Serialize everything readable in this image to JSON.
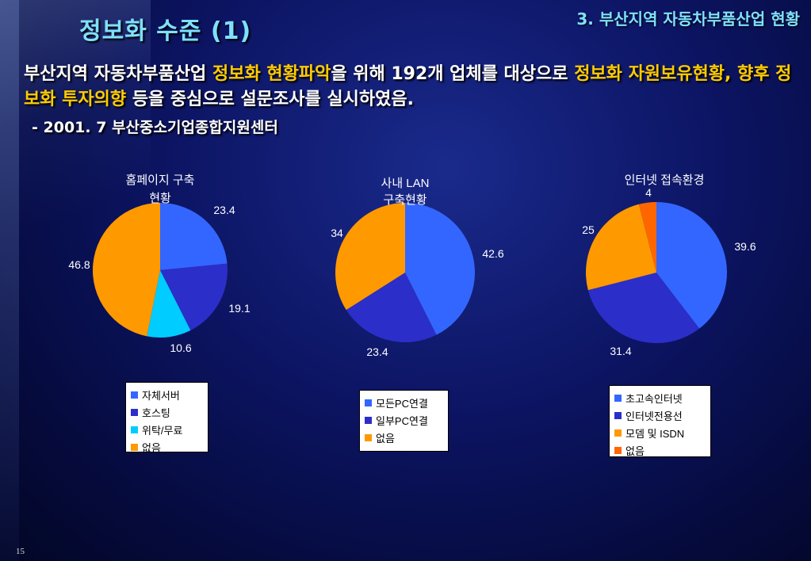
{
  "header": {
    "title": "정보화 수준 (1)",
    "section": "3. 부산지역 자동차부품산업 현황"
  },
  "description": {
    "part1": "부산지역 자동차부품산업 ",
    "hl1": "정보화 현황파악",
    "part2": "을 위해 192개 업체를 대상으로 ",
    "hl2": "정보화 자원보유현황, 향후 정보화 투자의향",
    "part3": " 등을 중심으로 설문조사를 실시하였음.",
    "source": "- 2001. 7 부산중소기업종합지원센터"
  },
  "page_number": "15",
  "chart_data": [
    {
      "type": "pie",
      "title_lines": [
        "홈페이지 구축",
        "현황"
      ],
      "labels": [
        "자체서버",
        "호스팅",
        "위탁/무료",
        "없음"
      ],
      "values": [
        23.4,
        19.1,
        10.6,
        46.8
      ],
      "colors": [
        "#3366ff",
        "#2b2ec8",
        "#00ccff",
        "#ff9900"
      ],
      "legend_position": "bottom"
    },
    {
      "type": "pie",
      "title_lines": [
        "사내 LAN",
        "구축현황"
      ],
      "labels": [
        "모든PC연결",
        "일부PC연결",
        "없음"
      ],
      "values": [
        42.6,
        23.4,
        34
      ],
      "colors": [
        "#3366ff",
        "#2b2ec8",
        "#ff9900"
      ],
      "legend_position": "bottom"
    },
    {
      "type": "pie",
      "title_lines": [
        "인터넷 접속환경"
      ],
      "labels": [
        "초고속인터넷",
        "인터넷전용선",
        "모뎀 및 ISDN",
        "없음"
      ],
      "values": [
        39.6,
        31.4,
        25,
        4
      ],
      "colors": [
        "#3366ff",
        "#2b2ec8",
        "#ff9900",
        "#ff6600"
      ],
      "legend_position": "bottom"
    }
  ]
}
